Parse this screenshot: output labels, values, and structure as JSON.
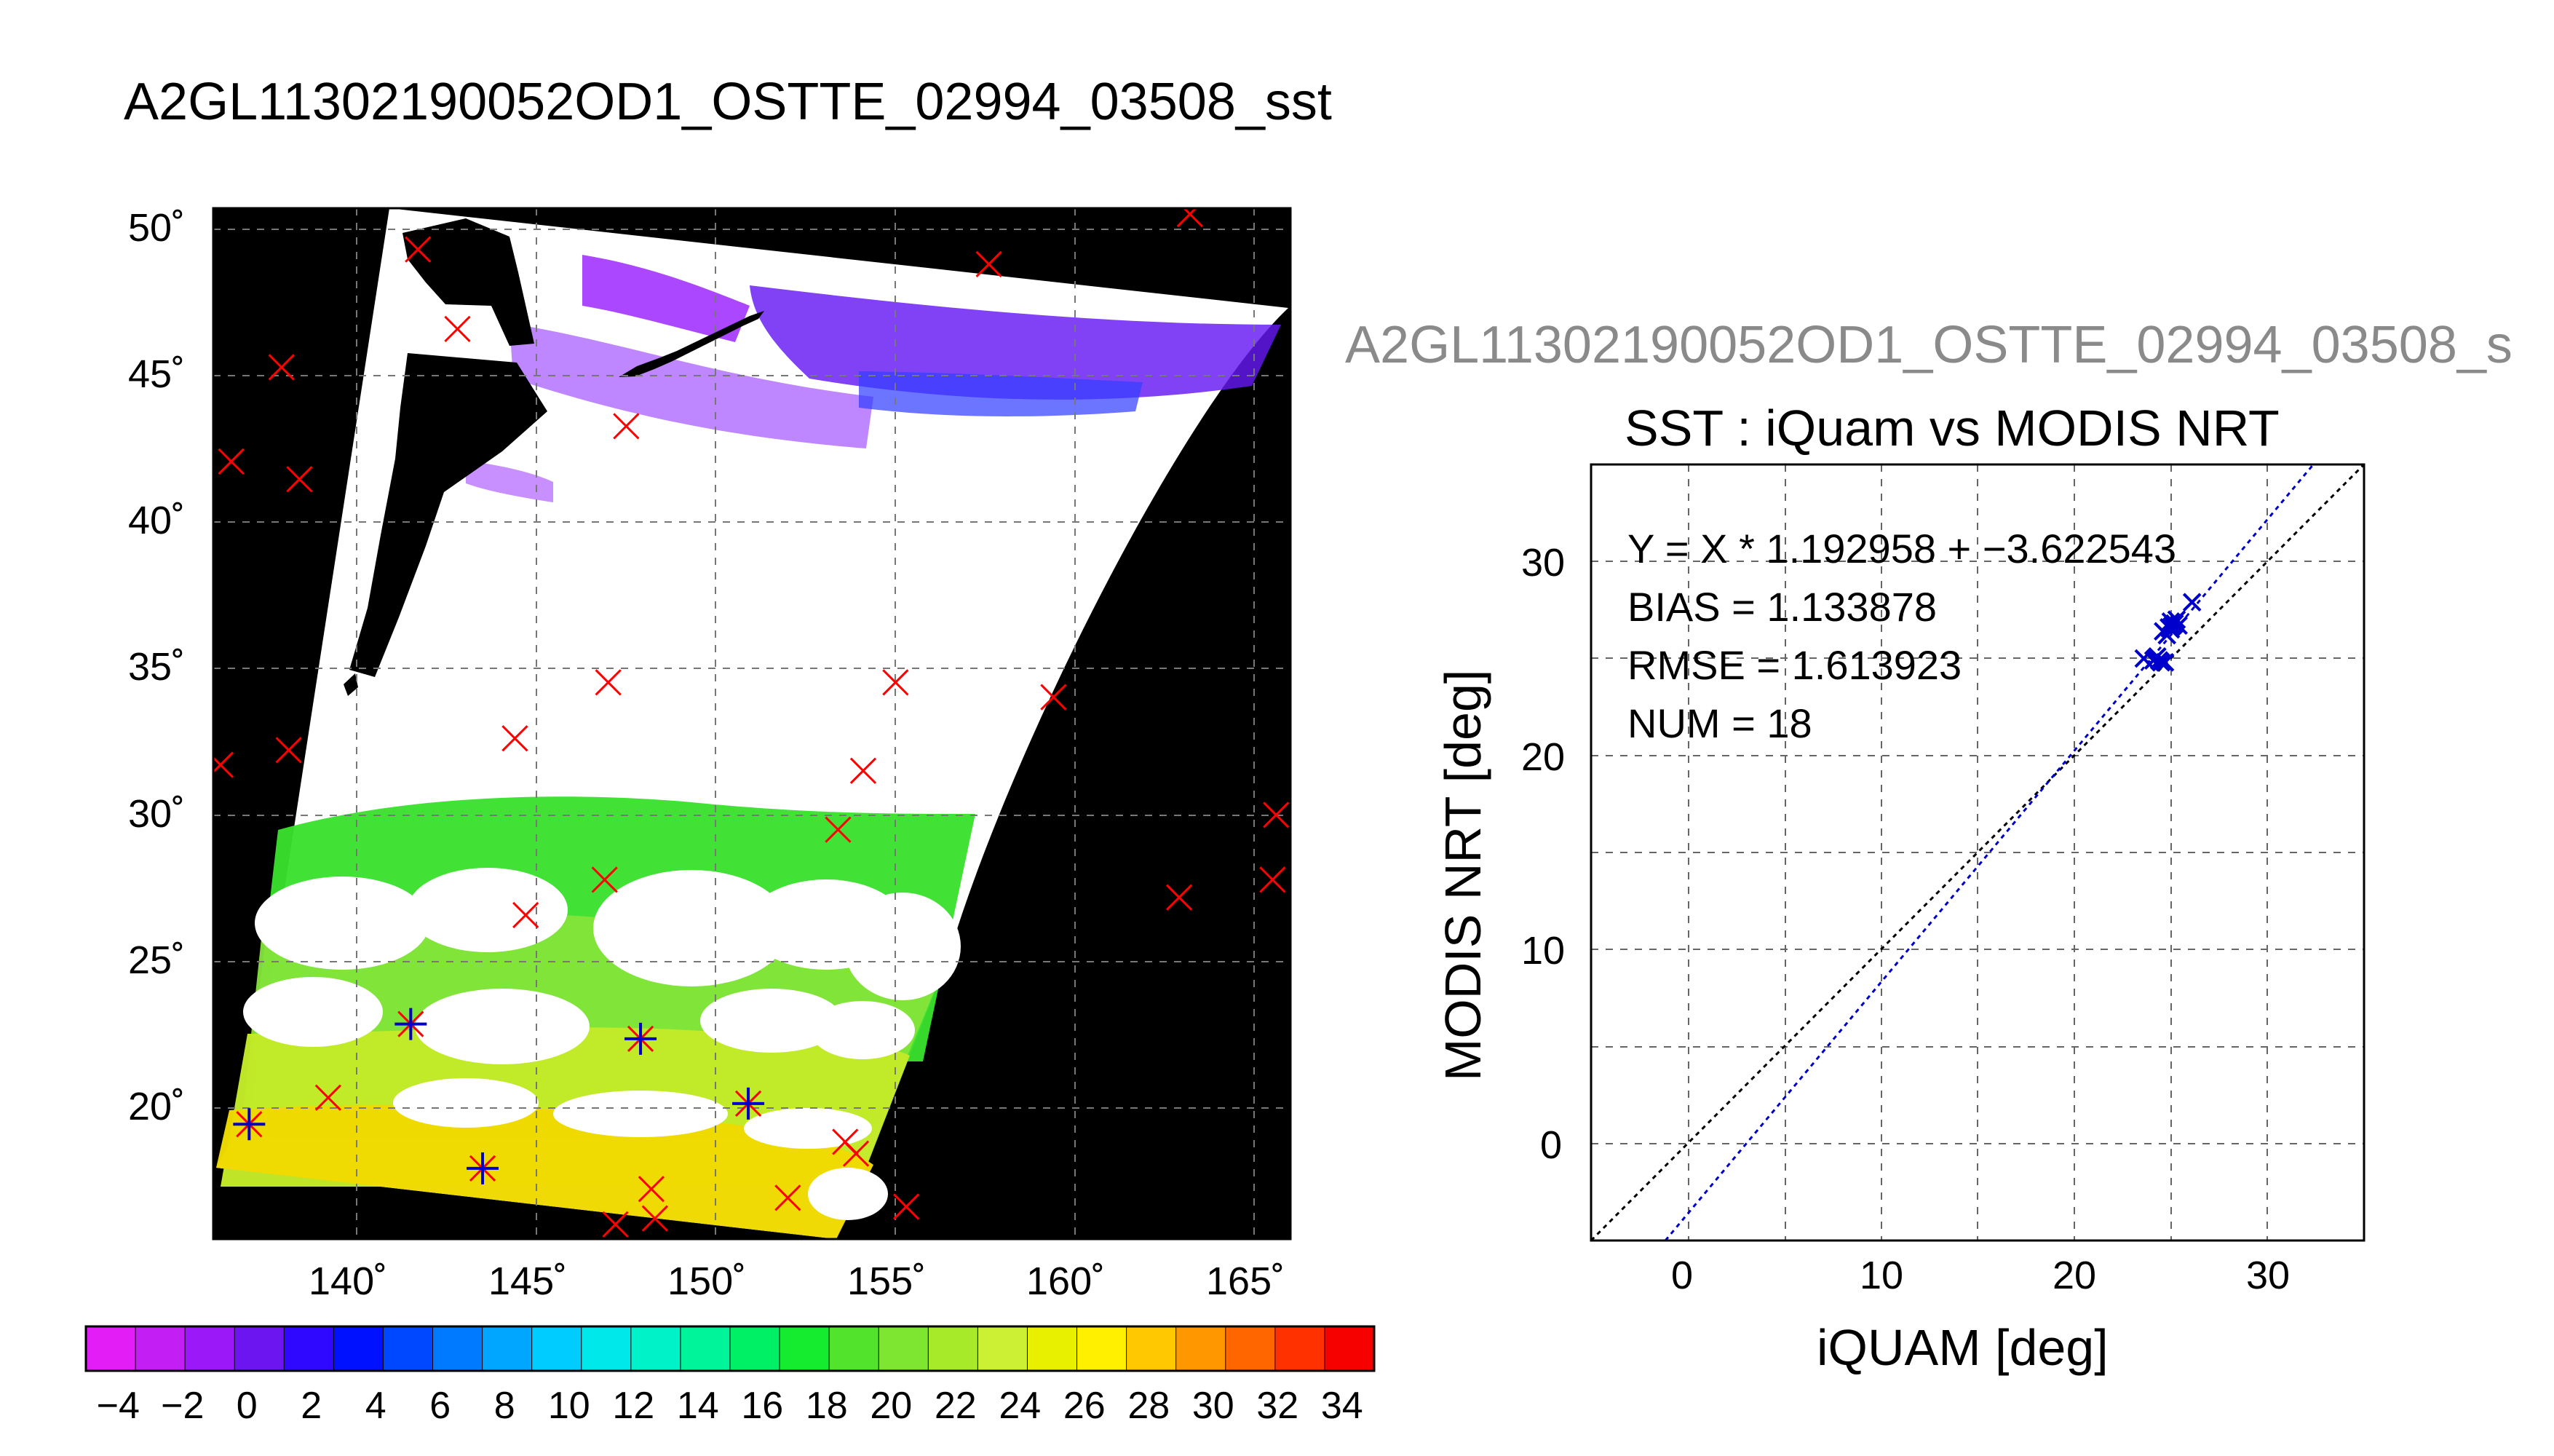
{
  "map_panel": {
    "title": "A2GL11302190052OD1_OSTTE_02994_03508_sst",
    "lat_tick_labels": [
      "50˚",
      "45˚",
      "40˚",
      "35˚",
      "30˚",
      "25˚",
      "20˚"
    ],
    "lon_tick_labels": [
      "140˚",
      "145˚",
      "150˚",
      "155˚",
      "160˚",
      "165˚"
    ],
    "colorbar_tick_labels": [
      "−4",
      "−2",
      "0",
      "2",
      "4",
      "6",
      "8",
      "10",
      "12",
      "14",
      "16",
      "18",
      "20",
      "22",
      "24",
      "26",
      "28",
      "30",
      "32",
      "34"
    ],
    "colors": {
      "land": "#000000",
      "cloud": "#ffffff",
      "red_marker": "#ff0000",
      "blue_marker": "#0000cc"
    }
  },
  "scatter_panel": {
    "overflow_title": "A2GL11302190052OD1_OSTTE_02994_03508_s",
    "title": "SST : iQuam vs MODIS NRT",
    "stats": {
      "line1": "Y = X * 1.192958 + −3.622543",
      "line2": "BIAS = 1.133878",
      "line3": "RMSE = 1.613923",
      "line4": "NUM = 18"
    },
    "x_tick_labels": [
      "0",
      "10",
      "20",
      "30"
    ],
    "y_tick_labels": [
      "0",
      "10",
      "20",
      "30"
    ]
  },
  "chart_data": [
    {
      "type": "scatter",
      "title": "A2GL11302190052OD1_OSTTE_02994_03508_sst",
      "xlabel": "",
      "ylabel": "",
      "xlim": [
        136,
        166
      ],
      "ylim": [
        15.5,
        50.5
      ],
      "x_ticks": [
        140,
        145,
        150,
        155,
        160,
        165
      ],
      "y_ticks": [
        20,
        25,
        30,
        35,
        40,
        45,
        50
      ],
      "grid": true,
      "colorbar": {
        "min": -5,
        "max": 35,
        "ticks": [
          -4,
          -2,
          0,
          2,
          4,
          6,
          8,
          10,
          12,
          14,
          16,
          18,
          20,
          22,
          24,
          26,
          28,
          30,
          32,
          34
        ]
      },
      "series": [
        {
          "name": "",
          "marker": "x",
          "color": "#ff0000",
          "lon": [
            141.7,
            142.8,
            137.9,
            136.5,
            138.4,
            147.5,
            157.6,
            163.2,
            147.0,
            144.4,
            138.1,
            136.2,
            154.1,
            159.4,
            153.4,
            155.0,
            165.6,
            162.9,
            165.5,
            146.9,
            144.7,
            141.5,
            147.9,
            139.2,
            137.0,
            143.5,
            150.9,
            153.6,
            153.9,
            148.2,
            152.0,
            155.3,
            147.2,
            148.3
          ],
          "lat": [
            49.1,
            46.4,
            45.1,
            41.9,
            41.3,
            43.1,
            48.6,
            50.3,
            34.4,
            32.5,
            32.1,
            31.6,
            31.4,
            33.9,
            29.4,
            34.4,
            29.9,
            27.1,
            27.7,
            27.7,
            26.5,
            22.8,
            22.3,
            20.3,
            19.4,
            17.9,
            20.1,
            18.8,
            18.4,
            17.2,
            16.9,
            16.6,
            16.0,
            16.2
          ]
        },
        {
          "name": "",
          "marker": "+",
          "color": "#0000cc",
          "lon": [
            141.5,
            147.9,
            137.0,
            143.5,
            150.9
          ],
          "lat": [
            22.8,
            22.3,
            19.4,
            17.9,
            20.1
          ]
        }
      ]
    },
    {
      "type": "scatter",
      "title": "SST : iQuam vs MODIS NRT",
      "xlabel": "iQUAM [deg]",
      "ylabel": "MODIS NRT [deg]",
      "xlim": [
        -5,
        35
      ],
      "ylim": [
        -5,
        35
      ],
      "x_ticks": [
        0,
        10,
        20,
        30
      ],
      "y_ticks": [
        0,
        10,
        20,
        30
      ],
      "grid": true,
      "series": [
        {
          "name": "",
          "marker": "x",
          "color": "#0000cc",
          "x": [
            23.6,
            24.1,
            24.3,
            24.5,
            24.6,
            24.8,
            24.9,
            25.0,
            25.1,
            25.2,
            25.3,
            26.1,
            24.2,
            24.4,
            24.7,
            25.0,
            25.4,
            25.0
          ],
          "y": [
            25.0,
            24.9,
            25.1,
            24.8,
            26.4,
            26.2,
            26.6,
            26.5,
            26.7,
            26.8,
            27.0,
            27.9,
            25.0,
            24.9,
            24.8,
            26.6,
            26.7,
            26.9
          ]
        },
        {
          "name": "",
          "type": "line",
          "color": "#000000",
          "x": [
            -5,
            35
          ],
          "y": [
            -5,
            35
          ]
        },
        {
          "name": "",
          "type": "line",
          "color": "#0000cc",
          "slope": 1.192958,
          "intercept": -3.622543
        }
      ]
    }
  ]
}
